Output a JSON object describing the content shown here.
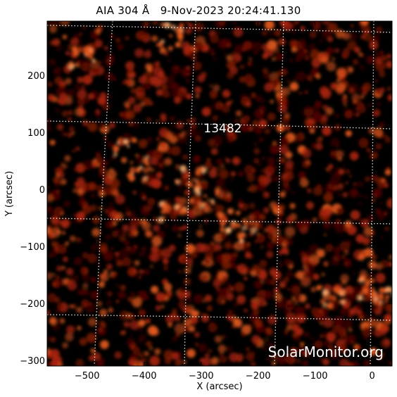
{
  "title": "AIA 304 Å   9-Nov-2023 20:24:41.130",
  "x_axis": {
    "label": "X (arcsec)",
    "ticks": [
      {
        "value": -500,
        "label": "−500"
      },
      {
        "value": -400,
        "label": "−400"
      },
      {
        "value": -300,
        "label": "−300"
      },
      {
        "value": -200,
        "label": "−200"
      },
      {
        "value": -100,
        "label": "−100"
      },
      {
        "value": 0,
        "label": "0"
      }
    ],
    "range": [
      -570,
      35
    ]
  },
  "y_axis": {
    "label": "Y (arcsec)",
    "ticks": [
      {
        "value": 200,
        "label": "200"
      },
      {
        "value": 100,
        "label": "100"
      },
      {
        "value": 0,
        "label": "0"
      },
      {
        "value": -100,
        "label": "−100"
      },
      {
        "value": -200,
        "label": "−200"
      },
      {
        "value": -300,
        "label": "−300"
      }
    ],
    "range": [
      -310,
      295
    ]
  },
  "region": {
    "number": "13482",
    "x": -262,
    "y": 100
  },
  "watermark": "SolarMonitor.org",
  "colors": {
    "background": "#000000",
    "dim": "#5a0800",
    "mid": "#a8240a",
    "bright": "#e65a1e",
    "hot": "#ffb070",
    "grid": "#ffffff"
  }
}
